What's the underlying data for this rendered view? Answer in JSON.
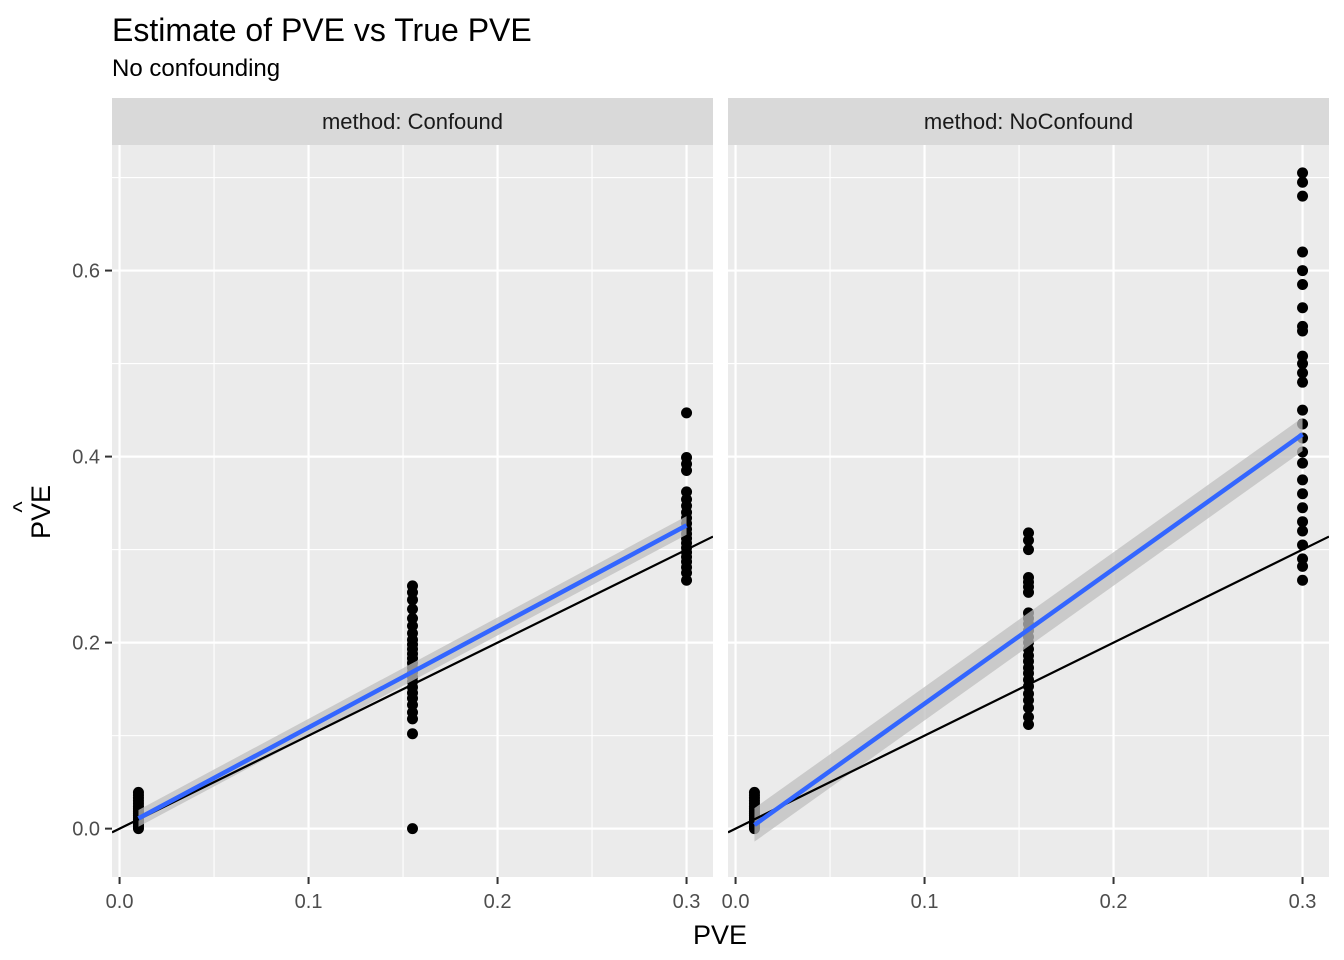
{
  "chart_data": {
    "type": "scatter",
    "title": "Estimate of PVE vs True PVE",
    "subtitle": "No confounding",
    "xlabel": "PVE",
    "ylabel_base": "PVE",
    "ylabel_accent": "^",
    "xlim": [
      -0.004,
      0.314
    ],
    "ylim": [
      -0.052,
      0.735
    ],
    "x_ticks": [
      0.0,
      0.1,
      0.2,
      0.3
    ],
    "x_tick_labels": [
      "0.0",
      "0.1",
      "0.2",
      "0.3"
    ],
    "y_ticks": [
      0.0,
      0.2,
      0.4,
      0.6
    ],
    "y_tick_labels": [
      "0.0",
      "0.2",
      "0.4",
      "0.6"
    ],
    "grid": true,
    "colors": {
      "panel_background": "#ebebeb",
      "strip_background": "#d9d9d9",
      "grid_line": "#ffffff",
      "point": "#000000",
      "fit_line": "#3366ff",
      "confidence_band": "#bfbfbf",
      "identity_line": "#000000"
    },
    "reference_line": {
      "slope": 1,
      "intercept": 0
    },
    "panels": [
      {
        "strip_label": "method: Confound",
        "fit": {
          "x": [
            0.01,
            0.3
          ],
          "y": [
            0.011,
            0.326
          ],
          "band_halfwidth": [
            0.009,
            0.01
          ]
        },
        "points": [
          {
            "x": 0.01,
            "y": [
              0.0,
              0.002,
              0.004,
              0.006,
              0.008,
              0.01,
              0.012,
              0.014,
              0.016,
              0.018,
              0.02,
              0.022,
              0.024,
              0.027,
              0.03,
              0.033,
              0.036,
              0.039
            ]
          },
          {
            "x": 0.155,
            "y": [
              0.0,
              0.102,
              0.118,
              0.125,
              0.133,
              0.14,
              0.146,
              0.152,
              0.158,
              0.163,
              0.168,
              0.173,
              0.178,
              0.183,
              0.188,
              0.193,
              0.198,
              0.203,
              0.21,
              0.218,
              0.226,
              0.236,
              0.246,
              0.254,
              0.261
            ]
          },
          {
            "x": 0.3,
            "y": [
              0.267,
              0.275,
              0.281,
              0.287,
              0.292,
              0.297,
              0.302,
              0.307,
              0.312,
              0.317,
              0.322,
              0.328,
              0.334,
              0.34,
              0.347,
              0.354,
              0.362,
              0.385,
              0.392,
              0.399,
              0.447
            ]
          }
        ]
      },
      {
        "strip_label": "method: NoConfound",
        "fit": {
          "x": [
            0.01,
            0.3
          ],
          "y": [
            0.004,
            0.424
          ],
          "band_halfwidth": [
            0.018,
            0.018
          ]
        },
        "points": [
          {
            "x": 0.01,
            "y": [
              0.0,
              0.002,
              0.004,
              0.006,
              0.008,
              0.01,
              0.012,
              0.014,
              0.016,
              0.018,
              0.02,
              0.022,
              0.024,
              0.027,
              0.03,
              0.033,
              0.036,
              0.039
            ]
          },
          {
            "x": 0.155,
            "y": [
              0.112,
              0.12,
              0.13,
              0.138,
              0.145,
              0.153,
              0.16,
              0.167,
              0.173,
              0.18,
              0.186,
              0.193,
              0.2,
              0.206,
              0.213,
              0.22,
              0.226,
              0.232,
              0.254,
              0.26,
              0.265,
              0.27,
              0.3,
              0.31,
              0.318
            ]
          },
          {
            "x": 0.3,
            "y": [
              0.267,
              0.282,
              0.29,
              0.305,
              0.32,
              0.33,
              0.345,
              0.36,
              0.375,
              0.393,
              0.405,
              0.42,
              0.435,
              0.45,
              0.48,
              0.49,
              0.5,
              0.508,
              0.535,
              0.54,
              0.56,
              0.585,
              0.6,
              0.62,
              0.68,
              0.695,
              0.705
            ]
          }
        ]
      }
    ]
  }
}
